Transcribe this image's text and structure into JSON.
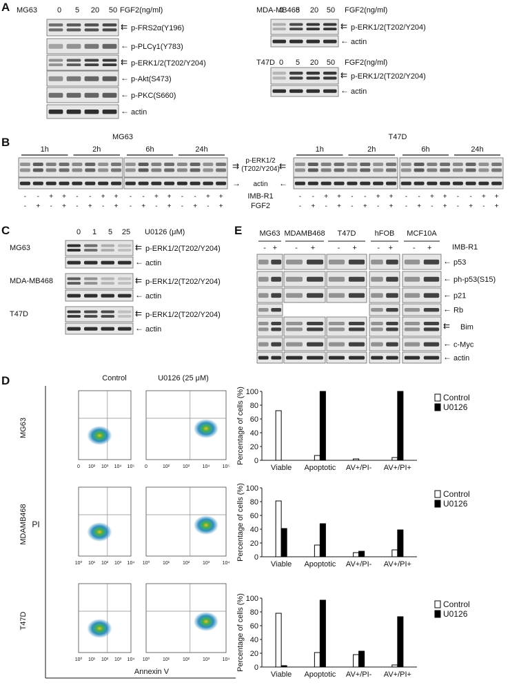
{
  "panel_labels": [
    "A",
    "B",
    "C",
    "D",
    "E"
  ],
  "panelA": {
    "mg63": {
      "cell": "MG63",
      "dose_label": "FGF2(ng/ml)",
      "doses": [
        "0",
        "5",
        "20",
        "50"
      ],
      "bands": [
        "p-FRS2α(Y196)",
        "p-PLCγ1(Y783)",
        "p-ERK1/2(T202/Y204)",
        "p-Akt(S473)",
        "p-PKC(S660)",
        "actin"
      ]
    },
    "mda": {
      "cell": "MDA-MB468",
      "dose_label": "FGF2(ng/ml)",
      "doses": [
        "0",
        "5",
        "20",
        "50"
      ],
      "bands": [
        "p-ERK1/2(T202/Y204)",
        "actin"
      ]
    },
    "t47d": {
      "cell": "T47D",
      "dose_label": "FGF2(ng/ml)",
      "doses": [
        "0",
        "5",
        "20",
        "50"
      ],
      "bands": [
        "p-ERK1/2(T202/Y204)",
        "actin"
      ]
    }
  },
  "panelB": {
    "cells": [
      "MG63",
      "T47D"
    ],
    "times": [
      "1h",
      "2h",
      "6h",
      "24h"
    ],
    "center_bands": [
      "p-ERK1/2",
      "(T202/Y204)",
      "actin"
    ],
    "treatments": [
      "IMB-R1",
      "FGF2"
    ],
    "imb_row": [
      "-",
      "-",
      "+",
      "+",
      "-",
      "-",
      "+",
      "+",
      "-",
      "-",
      "+",
      "+",
      "-",
      "-",
      "+",
      "+"
    ],
    "fgf_row": [
      "-",
      "+",
      "-",
      "+",
      "-",
      "+",
      "-",
      "+",
      "-",
      "+",
      "-",
      "+",
      "-",
      "+",
      "-",
      "+"
    ]
  },
  "panelC": {
    "treatment": "U0126 (μM)",
    "doses": [
      "0",
      "1",
      "5",
      "25"
    ],
    "cells": [
      "MG63",
      "MDA-MB468",
      "T47D"
    ],
    "bands": [
      "p-ERK1/2(T202/Y204)",
      "actin"
    ]
  },
  "panelE": {
    "cells": [
      "MG63",
      "MDAMB468",
      "T47D",
      "hFOB",
      "MCF10A"
    ],
    "treatment": "IMB-R1",
    "signs": [
      "-",
      "+"
    ],
    "bands": [
      "p53",
      "ph-p53(S15)",
      "p21",
      "Rb",
      "Bim",
      "c-Myc",
      "actin"
    ]
  },
  "panelD": {
    "column_titles": [
      "Control",
      "U0126 (25 μM)"
    ],
    "row_labels": [
      "MG63",
      "MDAMB468",
      "T47D"
    ],
    "y_axis_title": "PI",
    "x_axis_title": "Annexin V",
    "mg63_ticks": [
      "0",
      "10²",
      "10³",
      "10⁴",
      "10⁵"
    ],
    "log_ticks": [
      "10⁰",
      "10¹",
      "10²",
      "10³",
      "10⁴"
    ]
  },
  "chart_data": [
    {
      "type": "bar",
      "title": "MG63",
      "categories": [
        "Viable",
        "Apoptotic",
        "AV+/PI-",
        "AV+/PI+"
      ],
      "series": [
        {
          "name": "Control",
          "values": [
            72,
            7,
            2,
            4
          ]
        },
        {
          "name": "U0126",
          "values": [
            0,
            100,
            0,
            100
          ]
        }
      ],
      "ylabel": "Percentage of cells (%)",
      "ylim": [
        0,
        100
      ],
      "yticks": [
        "0",
        "20",
        "40",
        "60",
        "80",
        "100"
      ],
      "legend": "top-right",
      "colors": {
        "Control": "#ffffff",
        "U0126": "#000000"
      }
    },
    {
      "type": "bar",
      "title": "MDAMB468",
      "categories": [
        "Viable",
        "Apoptotic",
        "AV+/PI-",
        "AV+/PI+"
      ],
      "series": [
        {
          "name": "Control",
          "values": [
            81,
            17,
            6,
            10
          ]
        },
        {
          "name": "U0126",
          "values": [
            41,
            48,
            8,
            39
          ]
        }
      ],
      "ylabel": "Percentage of cells (%)",
      "ylim": [
        0,
        100
      ],
      "yticks": [
        "0",
        "20",
        "40",
        "60",
        "80",
        "100"
      ],
      "legend": "top-right",
      "colors": {
        "Control": "#ffffff",
        "U0126": "#000000"
      }
    },
    {
      "type": "bar",
      "title": "T47D",
      "categories": [
        "Viable",
        "Apoptotic",
        "AV+/PI-",
        "AV+/PI+"
      ],
      "series": [
        {
          "name": "Control",
          "values": [
            78,
            21,
            18,
            3
          ]
        },
        {
          "name": "U0126",
          "values": [
            2,
            97,
            23,
            73
          ]
        }
      ],
      "ylabel": "Percentage of cells (%)",
      "ylim": [
        0,
        100
      ],
      "yticks": [
        "0",
        "20",
        "40",
        "60",
        "80",
        "100"
      ],
      "legend": "top-right",
      "colors": {
        "Control": "#ffffff",
        "U0126": "#000000"
      }
    }
  ]
}
